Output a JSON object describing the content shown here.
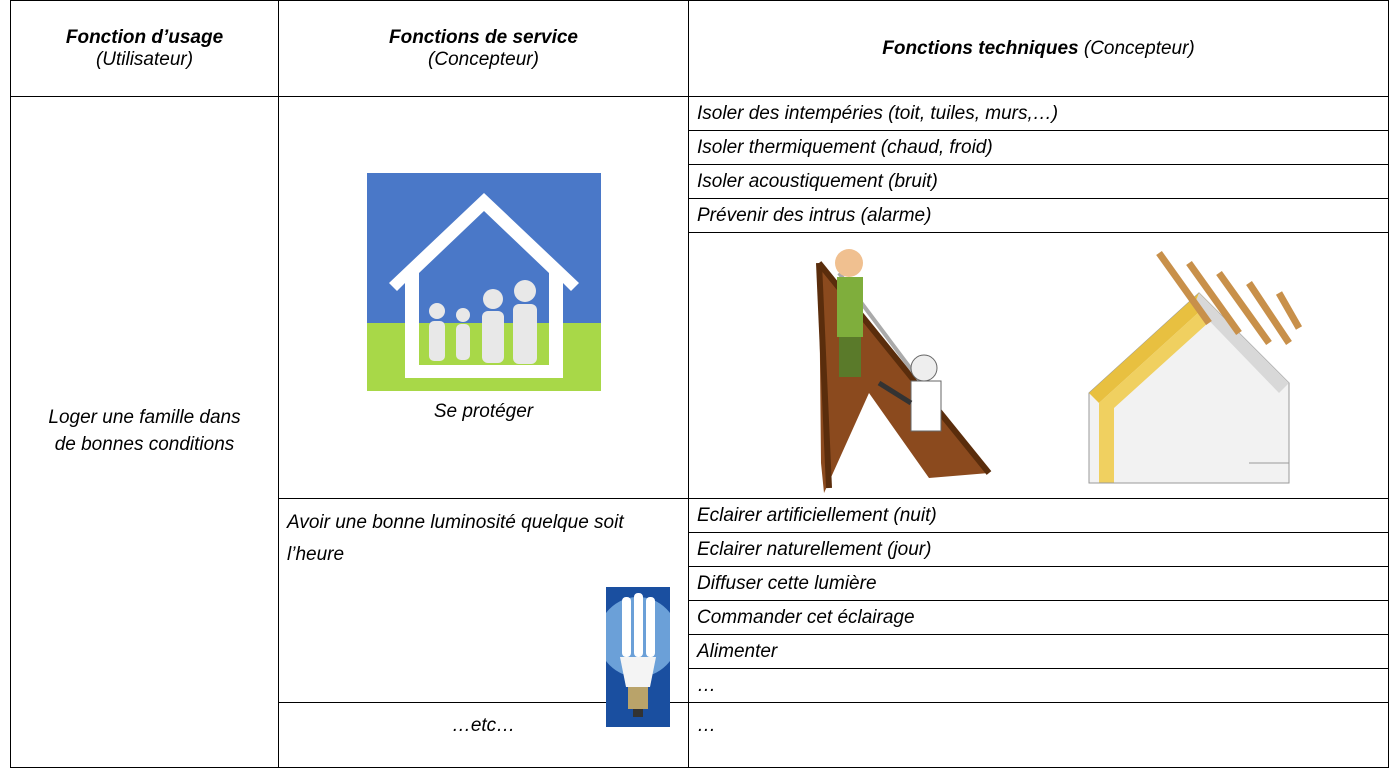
{
  "table": {
    "header": [
      {
        "title": "Fonction d’usage",
        "subtitle": "(Utilisateur)"
      },
      {
        "title": "Fonctions de service",
        "subtitle": "(Concepteur)"
      },
      {
        "title": "Fonctions techniques",
        "subtitle": "(Concepteur)"
      }
    ],
    "usage": "Loger une famille dans de bonnes conditions",
    "services": [
      {
        "label": "Se protéger",
        "techniques": [
          "Isoler des intempéries (toit, tuiles, murs,…)",
          "Isoler thermiquement (chaud, froid)",
          "Isoler acoustiquement (bruit)",
          "Prévenir des intrus (alarme)"
        ]
      },
      {
        "label": "Avoir une bonne luminosité quelque soit l’heure",
        "techniques": [
          "Eclairer artificiellement (nuit)",
          "Eclairer naturellement (jour)",
          "Diffuser cette lumière",
          "Commander cet éclairage",
          "Alimenter",
          "…"
        ]
      },
      {
        "label": "…etc…",
        "techniques": [
          "…"
        ]
      }
    ]
  }
}
